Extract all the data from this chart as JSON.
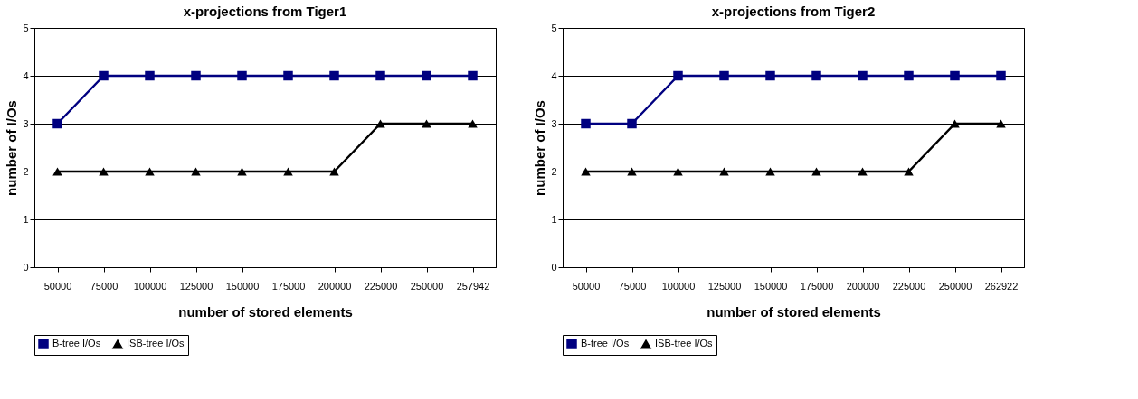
{
  "chart_data": [
    {
      "type": "line",
      "title": "x-projections from Tiger1",
      "xlabel": "number of stored elements",
      "ylabel": "number of I/Os",
      "categories": [
        "50000",
        "75000",
        "100000",
        "125000",
        "150000",
        "175000",
        "200000",
        "225000",
        "250000",
        "257942"
      ],
      "series": [
        {
          "name": "B-tree I/Os",
          "color": "#000080",
          "marker": "square",
          "values": [
            3,
            4,
            4,
            4,
            4,
            4,
            4,
            4,
            4,
            4
          ]
        },
        {
          "name": "ISB-tree I/Os",
          "color": "#000000",
          "marker": "triangle",
          "values": [
            2,
            2,
            2,
            2,
            2,
            2,
            2,
            3,
            3,
            3
          ]
        }
      ],
      "ylim": [
        0,
        5
      ],
      "yticks": [
        0,
        1,
        2,
        3,
        4,
        5
      ],
      "grid": "y",
      "legend": "bottom",
      "line_style": "solid"
    },
    {
      "type": "line",
      "title": "x-projections from Tiger2",
      "xlabel": "number of stored elements",
      "ylabel": "number of I/Os",
      "categories": [
        "50000",
        "75000",
        "100000",
        "125000",
        "150000",
        "175000",
        "200000",
        "225000",
        "250000",
        "262922"
      ],
      "series": [
        {
          "name": "B-tree I/Os",
          "color": "#000080",
          "marker": "square",
          "values": [
            3,
            3,
            4,
            4,
            4,
            4,
            4,
            4,
            4,
            4
          ]
        },
        {
          "name": "ISB-tree I/Os",
          "color": "#000000",
          "marker": "triangle",
          "values": [
            2,
            2,
            2,
            2,
            2,
            2,
            2,
            2,
            3,
            3
          ]
        }
      ],
      "ylim": [
        0,
        5
      ],
      "yticks": [
        0,
        1,
        2,
        3,
        4,
        5
      ],
      "grid": "y",
      "legend": "bottom",
      "line_style": "solid"
    }
  ]
}
